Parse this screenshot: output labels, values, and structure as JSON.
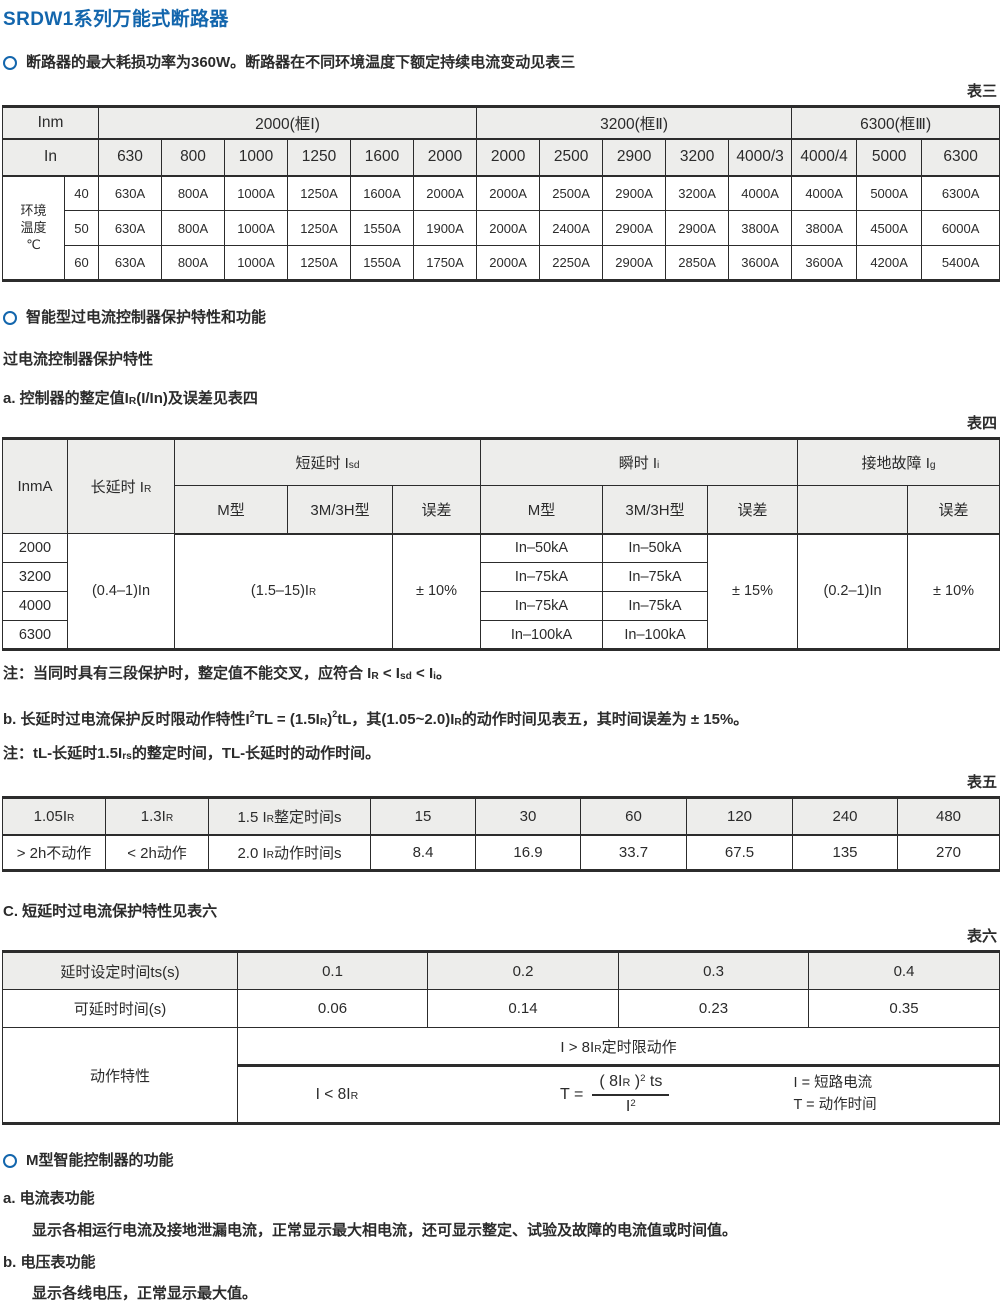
{
  "colors": {
    "accent_blue": "#1366ad",
    "text": "#2b2b2b",
    "table_border": "#2c2c2c",
    "header_bg": "#ededeb"
  },
  "title": "SRDW1系列万能式断路器",
  "intro": "断路器的最大耗损功率为360W。断路器在不同环境温度下额定持续电流变动见表三",
  "table_labels": {
    "t3": "表三",
    "t4": "表四",
    "t5": "表五",
    "t6": "表六"
  },
  "table3": {
    "corner_inm": "Inm",
    "corner_in": "In",
    "frames": [
      "2000(框Ⅰ)",
      "3200(框Ⅱ)",
      "6300(框Ⅲ)"
    ],
    "in_values": [
      "630",
      "800",
      "1000",
      "1250",
      "1600",
      "2000",
      "2000",
      "2500",
      "2900",
      "3200",
      "4000/3",
      "4000/4",
      "5000",
      "6300"
    ],
    "env_label": [
      "环境",
      "温度",
      "℃"
    ],
    "temps": [
      "40",
      "50",
      "60"
    ],
    "rows": [
      [
        "630A",
        "800A",
        "1000A",
        "1250A",
        "1600A",
        "2000A",
        "2000A",
        "2500A",
        "2900A",
        "3200A",
        "4000A",
        "4000A",
        "5000A",
        "6300A"
      ],
      [
        "630A",
        "800A",
        "1000A",
        "1250A",
        "1550A",
        "1900A",
        "2000A",
        "2400A",
        "2900A",
        "2900A",
        "3800A",
        "3800A",
        "4500A",
        "6000A"
      ],
      [
        "630A",
        "800A",
        "1000A",
        "1250A",
        "1550A",
        "1750A",
        "2000A",
        "2250A",
        "2900A",
        "2850A",
        "3600A",
        "3600A",
        "4200A",
        "5400A"
      ]
    ]
  },
  "section_protect": {
    "heading": "智能型过电流控制器保护特性和功能",
    "subheading": "过电流控制器保护特性",
    "item_a": [
      {
        "t": "a. 控制器的整定值I"
      },
      {
        "t": "R",
        "s": "sub"
      },
      {
        "t": "(I/In)及误差见表四"
      }
    ]
  },
  "table4": {
    "h_inma": "InmA",
    "h_long": [
      {
        "t": "长延时 I"
      },
      {
        "t": "R",
        "s": "sub"
      }
    ],
    "h_short": [
      {
        "t": "短延时 I"
      },
      {
        "t": "sd",
        "s": "sub"
      }
    ],
    "h_inst": [
      {
        "t": "瞬时 I"
      },
      {
        "t": "i",
        "s": "sub"
      }
    ],
    "h_ground": [
      {
        "t": "接地故障 I"
      },
      {
        "t": "g",
        "s": "sub"
      }
    ],
    "h_m": "M型",
    "h_3m": "3M/3H型",
    "h_err": "误差",
    "inma_rows": [
      "2000",
      "3200",
      "4000",
      "6300"
    ],
    "long_val": "(0.4–1)In",
    "short_val": [
      {
        "t": "(1.5–15)I"
      },
      {
        "t": "R",
        "s": "sub"
      }
    ],
    "short_err": "± 10%",
    "inst_rows": [
      [
        "In–50kA",
        "In–50kA"
      ],
      [
        "In–75kA",
        "In–75kA"
      ],
      [
        "In–75kA",
        "In–75kA"
      ],
      [
        "In–100kA",
        "In–100kA"
      ]
    ],
    "inst_err": "± 15%",
    "ground_val": "(0.2–1)In",
    "ground_err": "± 10%"
  },
  "note_table4": [
    {
      "t": "注：当同时具有三段保护时，整定值不能交叉，应符合 I"
    },
    {
      "t": "R",
      "s": "sub"
    },
    {
      "t": " < I"
    },
    {
      "t": "sd",
      "s": "sub"
    },
    {
      "t": " < I"
    },
    {
      "t": "i",
      "s": "sub"
    },
    {
      "t": "。"
    }
  ],
  "item_b": [
    {
      "t": "b. 长延时过电流保护反时限动作特性I"
    },
    {
      "t": "2",
      "s": "sup"
    },
    {
      "t": "TL = (1.5I"
    },
    {
      "t": "R",
      "s": "sub"
    },
    {
      "t": ")"
    },
    {
      "t": "2",
      "s": "sup"
    },
    {
      "t": "tL，其(1.05~2.0)I"
    },
    {
      "t": "R",
      "s": "sub"
    },
    {
      "t": "的动作时间见表五，其时间误差为 ± 15%。"
    }
  ],
  "note_table5": [
    {
      "t": "注：tL-长延时1.5I"
    },
    {
      "t": "rs",
      "s": "sub"
    },
    {
      "t": "的整定时间，TL-长延时的动作时间。"
    }
  ],
  "table5": {
    "r1": {
      "c0": [
        {
          "t": "1.05I"
        },
        {
          "t": "R",
          "s": "sub"
        }
      ],
      "c1": [
        {
          "t": "1.3I"
        },
        {
          "t": "R",
          "s": "sub"
        }
      ],
      "c2": [
        {
          "t": "1.5 I"
        },
        {
          "t": "R",
          "s": "sub"
        },
        {
          "t": "整定时间s"
        }
      ],
      "vals": [
        "15",
        "30",
        "60",
        "120",
        "240",
        "480"
      ]
    },
    "r2": {
      "c0": "> 2h不动作",
      "c1": "< 2h动作",
      "c2": [
        {
          "t": "2.0 I"
        },
        {
          "t": "R",
          "s": "sub"
        },
        {
          "t": "动作时间s"
        }
      ],
      "vals": [
        "8.4",
        "16.9",
        "33.7",
        "67.5",
        "135",
        "270"
      ]
    }
  },
  "item_c": "C. 短延时过电流保护特性见表六",
  "table6": {
    "r1": [
      "延时设定时间ts(s)",
      "0.1",
      "0.2",
      "0.3",
      "0.4"
    ],
    "r2": [
      "可延时时间(s)",
      "0.06",
      "0.14",
      "0.23",
      "0.35"
    ],
    "action_label": "动作特性",
    "cond_top": [
      {
        "t": "I > 8I"
      },
      {
        "t": "R",
        "s": "sub"
      },
      {
        "t": "定时限动作"
      }
    ],
    "cond_left": [
      {
        "t": "I < 8I"
      },
      {
        "t": "R",
        "s": "sub"
      }
    ],
    "formula_prefix": "T =",
    "formula_num": [
      {
        "t": "( 8I"
      },
      {
        "t": "R",
        "s": "sub"
      },
      {
        "t": " )"
      },
      {
        "t": "2",
        "s": "sup"
      },
      {
        "t": " ts"
      }
    ],
    "formula_den": [
      {
        "t": "I"
      },
      {
        "t": "2",
        "s": "sup"
      }
    ],
    "legend": [
      "I = 短路电流",
      "T = 动作时间"
    ]
  },
  "section_m": {
    "heading": "M型智能控制器的功能",
    "item_a": "a. 电流表功能",
    "item_a_desc": "显示各相运行电流及接地泄漏电流，正常显示最大相电流，还可显示整定、试验及故障的电流值或时间值。",
    "item_b": "b. 电压表功能",
    "item_b_desc": "显示各线电压，正常显示最大值。"
  }
}
